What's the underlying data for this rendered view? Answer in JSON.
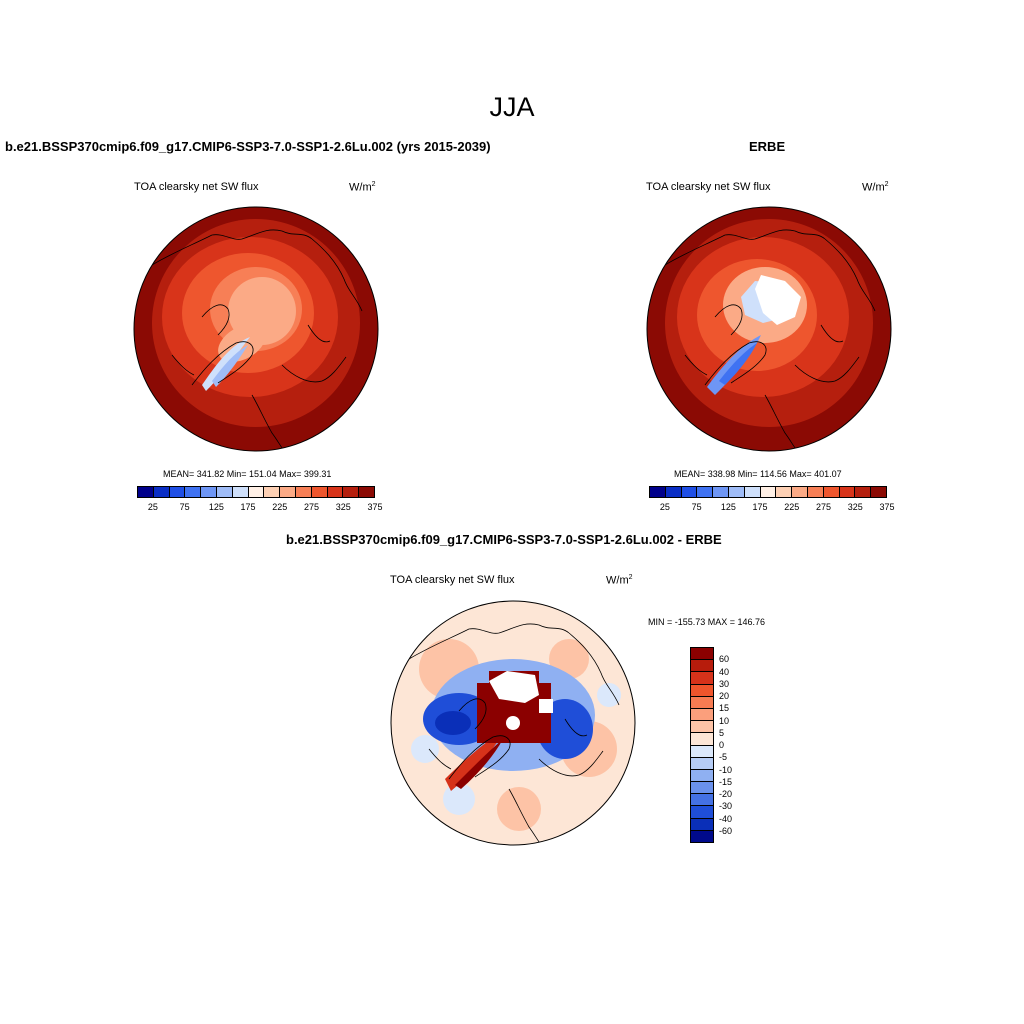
{
  "main_title": "JJA",
  "panels": {
    "model": {
      "title": "b.e21.BSSP370cmip6.f09_g17.CMIP6-SSP3-7.0-SSP1-2.6Lu.002 (yrs 2015-2039)",
      "variable": "TOA clearsky net SW flux",
      "units": "W/m",
      "units_exp": "2",
      "stats": "MEAN= 341.82  Min= 151.04  Max= 399.31"
    },
    "obs": {
      "title": "ERBE",
      "variable": "TOA clearsky net SW flux",
      "units": "W/m",
      "units_exp": "2",
      "stats": "MEAN= 338.98  Min= 114.56  Max= 401.07"
    },
    "diff": {
      "title": "b.e21.BSSP370cmip6.f09_g17.CMIP6-SSP3-7.0-SSP1-2.6Lu.002 - ERBE",
      "variable": "TOA clearsky net SW flux",
      "units": "W/m",
      "units_exp": "2",
      "stats": "MIN = -155.73 MAX = 146.76"
    }
  },
  "colorbar_abs": {
    "colors": [
      "#00008b",
      "#0a2ec6",
      "#1f4fe6",
      "#3f72f2",
      "#6e96f5",
      "#9fbcf7",
      "#cfe0fb",
      "#fff0e6",
      "#fdd0b4",
      "#fbaa86",
      "#f77f56",
      "#ee562e",
      "#d8341a",
      "#b51f0e",
      "#8b0a04"
    ],
    "tick_labels": [
      "25",
      "75",
      "125",
      "175",
      "225",
      "275",
      "325",
      "375"
    ]
  },
  "colorbar_diff": {
    "colors": [
      "#8b0000",
      "#b71c0c",
      "#d6321a",
      "#ef552c",
      "#f77b52",
      "#fb9f7c",
      "#fdc3a6",
      "#fde6d6",
      "#dbe8fb",
      "#b6cdf6",
      "#8fb0f2",
      "#6a91ec",
      "#4471e4",
      "#1f4ed8",
      "#0a2fb8",
      "#000a8b"
    ],
    "tick_labels": [
      "60",
      "40",
      "30",
      "20",
      "15",
      "10",
      "5",
      "0",
      "-5",
      "-10",
      "-15",
      "-20",
      "-30",
      "-40",
      "-60"
    ]
  }
}
